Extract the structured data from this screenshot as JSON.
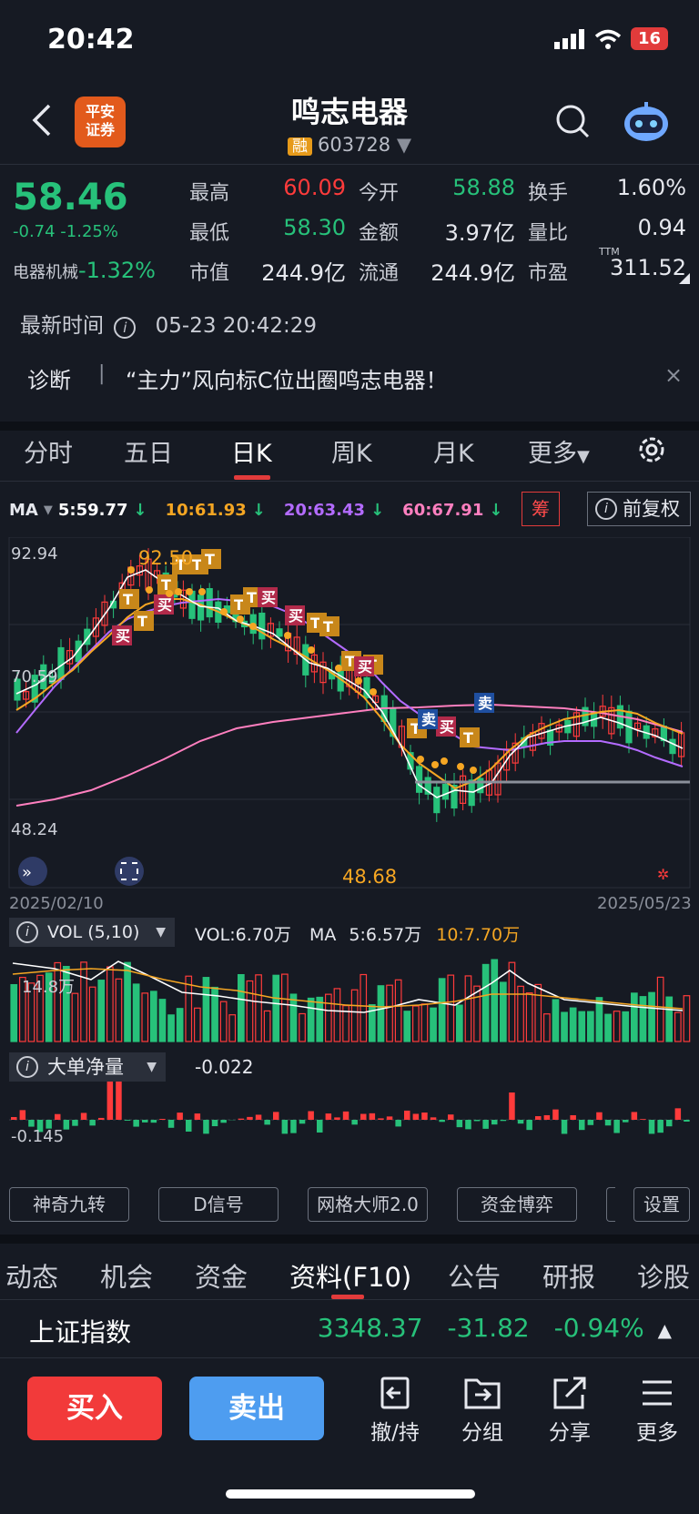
{
  "status": {
    "time": "20:42",
    "battery": "16"
  },
  "header": {
    "logo": "平安\n证券",
    "name": "鸣志电器",
    "rong": "融",
    "code": "603728"
  },
  "quote": {
    "price": "58.46",
    "change": "-0.74 -1.25%",
    "sector_name": "电器机械",
    "sector_change": "-1.32%",
    "fields": [
      {
        "label": "最高",
        "value": "60.09",
        "color": "#ff3b3b"
      },
      {
        "label": "今开",
        "value": "58.88",
        "color": "#27c17a"
      },
      {
        "label": "换手",
        "value": "1.60%",
        "color": "#e6e8ee"
      },
      {
        "label": "最低",
        "value": "58.30",
        "color": "#27c17a"
      },
      {
        "label": "金额",
        "value": "3.97亿",
        "color": "#e6e8ee"
      },
      {
        "label": "量比",
        "value": "0.94",
        "color": "#e6e8ee"
      },
      {
        "label": "市值",
        "value": "244.9亿",
        "color": "#e6e8ee"
      },
      {
        "label": "流通",
        "value": "244.9亿",
        "color": "#e6e8ee"
      },
      {
        "label": "市盈",
        "value": "311.52",
        "color": "#e6e8ee"
      }
    ],
    "pe_sup": "TTM",
    "update_label": "最新时间",
    "update_time": "05-23 20:42:29"
  },
  "diagnosis": {
    "label": "诊断",
    "sep": "|",
    "text": "“主力”风向标C位出圈鸣志电器！",
    "close": "×"
  },
  "period_tabs": [
    "分时",
    "五日",
    "日K",
    "周K",
    "月K",
    "更多"
  ],
  "ma": {
    "label": "MA",
    "ma5": "5:59.77",
    "ma10": "10:61.93",
    "ma20": "20:63.43",
    "ma60": "60:67.91",
    "chip": "筹",
    "fq": "前复权"
  },
  "kline": {
    "y_top": "92.94",
    "y_mid": "70.59",
    "y_bottom": "48.24",
    "high_mark": "92.50",
    "low_mark": "48.68",
    "date_start": "2025/02/10",
    "date_end": "2025/05/23",
    "signals": {
      "t": "T",
      "buy": "买",
      "sell": "卖"
    }
  },
  "volume": {
    "label": "VOL (5,10)",
    "vol": "VOL:6.70万",
    "ma_label": "MA",
    "ma5": "5:6.57万",
    "ma10": "10:7.70万",
    "axis": "14.8万"
  },
  "bigorder": {
    "label": "大单净量",
    "value": "-0.022",
    "axis": "-0.145"
  },
  "tools": [
    "神奇九转",
    "D信号",
    "网格大师2.0",
    "资金博弈",
    "设置"
  ],
  "bottom_tabs": [
    "动态",
    "机会",
    "资金",
    "资料(F10)",
    "公告",
    "研报",
    "诊股"
  ],
  "index": {
    "name": "上证指数",
    "value": "3348.37",
    "change": "-31.82",
    "pct": "-0.94%"
  },
  "actions": {
    "buy": "买入",
    "sell": "卖出",
    "items": [
      "撤/持",
      "分组",
      "分享",
      "更多"
    ]
  },
  "colors": {
    "up": "#ff3b3b",
    "down": "#27c17a",
    "ma5": "#ffffff",
    "ma10": "#f5a623",
    "ma20": "#b36bff",
    "ma60": "#ff7fbf"
  }
}
